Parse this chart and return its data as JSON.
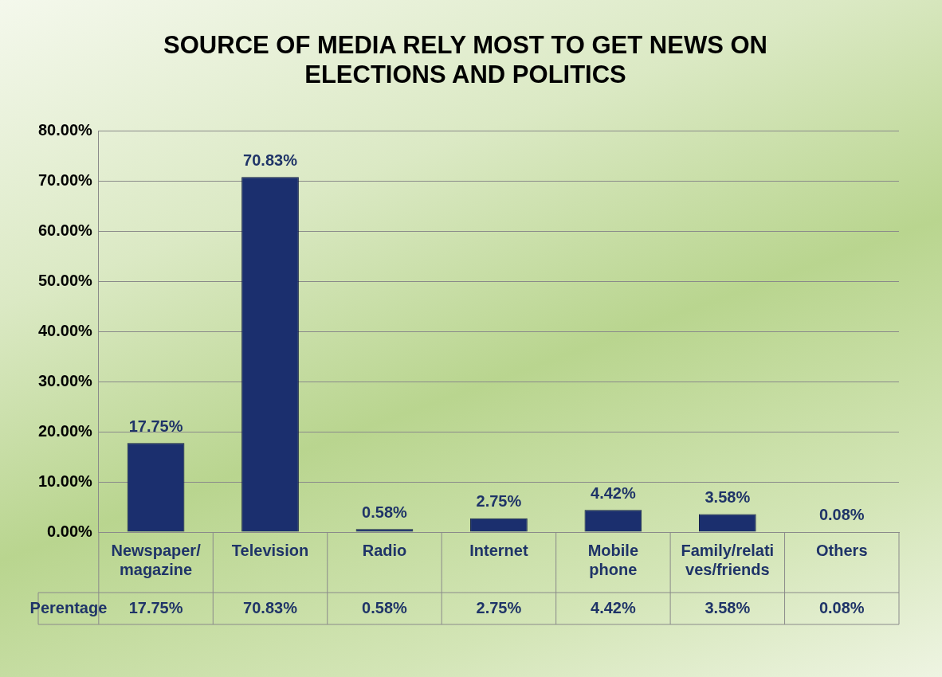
{
  "chart_data": {
    "type": "bar",
    "title": "SOURCE OF MEDIA RELY MOST TO GET NEWS ON ELECTIONS AND POLITICS",
    "categories": [
      "Newspaper/ magazine",
      "Television",
      "Radio",
      "Internet",
      "Mobile phone",
      "Family/relatives/friends",
      "Others"
    ],
    "series": [
      {
        "name": "Perentage",
        "color": "#1b2f6e",
        "values": [
          17.75,
          70.83,
          0.58,
          2.75,
          4.42,
          3.58,
          0.08
        ],
        "value_labels": [
          "17.75%",
          "70.83%",
          "0.58%",
          "2.75%",
          "4.42%",
          "3.58%",
          "0.08%"
        ]
      }
    ],
    "ylim": [
      0,
      80
    ],
    "yticks": [
      {
        "value": 0,
        "label": "0.00%"
      },
      {
        "value": 10,
        "label": "10.00%"
      },
      {
        "value": 20,
        "label": "20.00%"
      },
      {
        "value": 30,
        "label": "30.00%"
      },
      {
        "value": 40,
        "label": "40.00%"
      },
      {
        "value": 50,
        "label": "50.00%"
      },
      {
        "value": 60,
        "label": "60.00%"
      },
      {
        "value": 70,
        "label": "70.00%"
      },
      {
        "value": 80,
        "label": "80.00%"
      }
    ],
    "grid": "y",
    "legend": false
  }
}
